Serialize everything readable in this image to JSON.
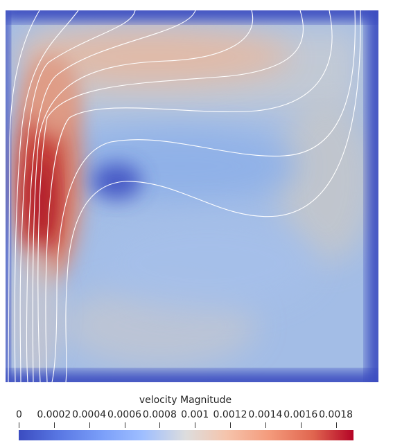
{
  "figure": {
    "colormap": "cool-to-warm",
    "colors": {
      "low": "#3b4cc0",
      "mid": "#dddddd",
      "high": "#b40426",
      "streamline": "#ffffff",
      "background": "#ffffff"
    }
  },
  "legend": {
    "title": "velocity Magnitude",
    "range": [
      0,
      0.0019
    ],
    "ticks": [
      {
        "value": 0,
        "label": "0"
      },
      {
        "value": 0.0002,
        "label": "0.0002"
      },
      {
        "value": 0.0004,
        "label": "0.0004"
      },
      {
        "value": 0.0006,
        "label": "0.0006"
      },
      {
        "value": 0.0008,
        "label": "0.0008"
      },
      {
        "value": 0.001,
        "label": "0.001"
      },
      {
        "value": 0.0012,
        "label": "0.0012"
      },
      {
        "value": 0.0014,
        "label": "0.0014"
      },
      {
        "value": 0.0016,
        "label": "0.0016"
      },
      {
        "value": 0.0018,
        "label": "0.0018"
      }
    ]
  }
}
